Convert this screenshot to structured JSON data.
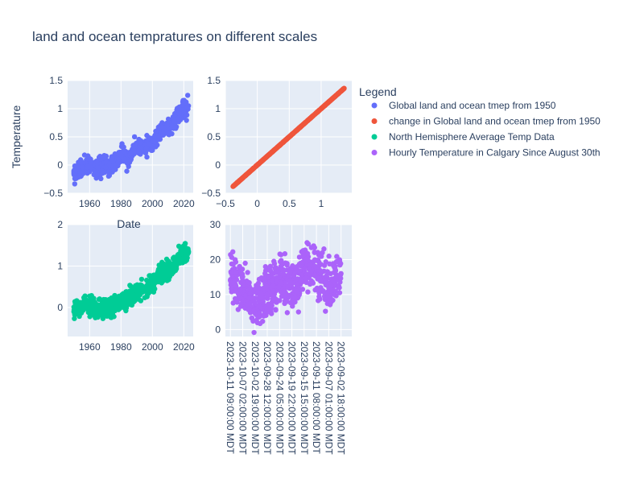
{
  "title": "land and ocean tempratures on different scales",
  "legend": {
    "title": "Legend",
    "placement": "right",
    "entries": [
      {
        "label": "Global land and ocean tmep from 1950",
        "color": "#636efa"
      },
      {
        "label": "change in Global land and ocean tmep from 1950",
        "color": "#EF553B"
      },
      {
        "label": "North Hemisphere Average Temp Data",
        "color": "#00cc96"
      },
      {
        "label": "Hourly Temperature in Calgary Since August 30th",
        "color": "#ab63fa"
      }
    ]
  },
  "chart_data": [
    {
      "type": "scatter",
      "name": "Global land and ocean tmep from 1950",
      "color": "#636efa",
      "xlabel": "",
      "ylabel": "Temperature",
      "xlim": [
        1946,
        2026
      ],
      "ylim": [
        -0.5,
        1.5
      ],
      "xticks": [
        "1960",
        "1980",
        "2000",
        "2020"
      ],
      "yticks": [
        "−0.5",
        "0",
        "0.5",
        "1",
        "1.5"
      ],
      "x": [
        1950,
        1955,
        1960,
        1965,
        1970,
        1975,
        1980,
        1985,
        1990,
        1995,
        2000,
        2005,
        2010,
        2015,
        2020,
        2023
      ],
      "y": [
        -0.15,
        -0.05,
        0.0,
        -0.05,
        0.0,
        0.0,
        0.2,
        0.1,
        0.35,
        0.35,
        0.4,
        0.6,
        0.65,
        0.8,
        1.0,
        1.05
      ],
      "grid": true
    },
    {
      "type": "scatter",
      "name": "change in Global land and ocean tmep from 1950",
      "color": "#EF553B",
      "xlim": [
        -0.5,
        1.48
      ],
      "ylim": [
        -0.5,
        1.5
      ],
      "xticks": [
        "−0.5",
        "0",
        "0.5",
        "1"
      ],
      "yticks": [
        "−0.5",
        "0",
        "0.5",
        "1",
        "1.5"
      ],
      "x": [
        -0.38,
        -0.2,
        0.0,
        0.2,
        0.4,
        0.6,
        0.8,
        1.0,
        1.2,
        1.36
      ],
      "y": [
        -0.38,
        -0.2,
        0.0,
        0.2,
        0.4,
        0.6,
        0.8,
        1.0,
        1.2,
        1.36
      ],
      "grid": true
    },
    {
      "type": "scatter",
      "name": "North Hemisphere Average Temp Data",
      "color": "#00cc96",
      "xlabel": "Date",
      "xlim": [
        1946,
        2026
      ],
      "ylim": [
        -0.7,
        2.0
      ],
      "xticks": [
        "1960",
        "1980",
        "2000",
        "2020"
      ],
      "yticks": [
        "0",
        "1",
        "2"
      ],
      "x": [
        1950,
        1955,
        1960,
        1965,
        1970,
        1975,
        1980,
        1985,
        1990,
        1995,
        2000,
        2005,
        2010,
        2015,
        2020,
        2023
      ],
      "y": [
        -0.1,
        0.05,
        0.05,
        -0.05,
        0.0,
        0.0,
        0.15,
        0.2,
        0.4,
        0.45,
        0.55,
        0.8,
        0.9,
        1.1,
        1.3,
        1.35
      ],
      "grid": true
    },
    {
      "type": "scatter",
      "name": "Hourly Temperature in Calgary Since August 30th",
      "color": "#ab63fa",
      "xaxis_type": "date",
      "xlim": [
        "2023-10-13 03:00:00",
        "2023-08-30 00:00:00"
      ],
      "ylim": [
        -2,
        30
      ],
      "xticks": [
        "2023-10-11 09:00:00 MDT",
        "2023-10-07 02:00:00 MDT",
        "2023-10-02 19:00:00 MDT",
        "2023-09-28 12:00:00 MDT",
        "2023-09-24 05:00:00 MDT",
        "2023-09-19 22:00:00 MDT",
        "2023-09-15 15:00:00 MDT",
        "2023-09-11 08:00:00 MDT",
        "2023-09-07 01:00:00 MDT",
        "2023-09-02 18:00:00 MDT"
      ],
      "yticks": [
        "0",
        "10",
        "20",
        "30"
      ],
      "x": [
        "2023-10-11 09:00:00",
        "2023-10-07 02:00:00",
        "2023-10-02 19:00:00",
        "2023-09-28 12:00:00",
        "2023-09-24 05:00:00",
        "2023-09-19 22:00:00",
        "2023-09-15 15:00:00",
        "2023-09-11 08:00:00",
        "2023-09-07 01:00:00",
        "2023-09-02 18:00:00"
      ],
      "y": [
        14,
        12,
        7,
        11,
        15,
        12,
        18,
        17,
        12,
        16
      ],
      "grid": true
    }
  ]
}
